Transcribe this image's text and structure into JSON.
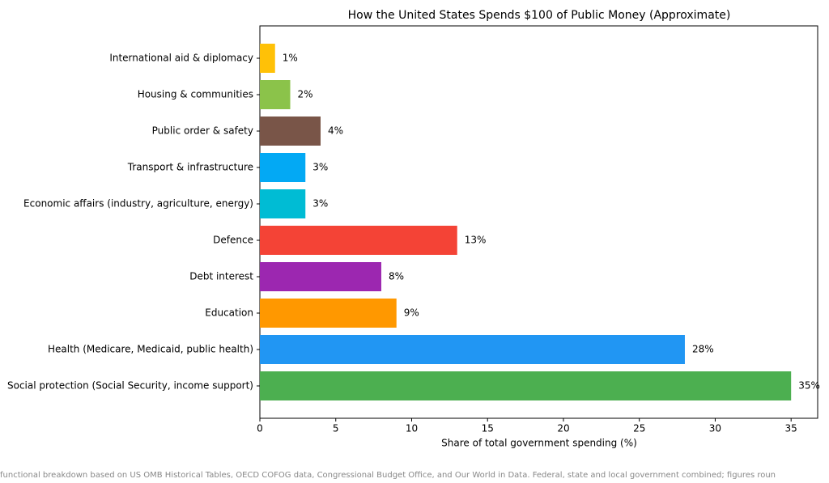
{
  "chart_data": {
    "type": "barh",
    "title": "How the United States Spends $100 of Public Money (Approximate)",
    "xlabel": "Share of total government spending (%)",
    "footnote": "functional breakdown based on US OMB Historical Tables, OECD COFOG data, Congressional Budget Office, and Our World in Data. Federal, state and local government combined; figures roun",
    "categories": [
      "Social protection (Social Security, income support)",
      "Health (Medicare, Medicaid, public health)",
      "Education",
      "Debt interest",
      "Defence",
      "Economic affairs (industry, agriculture, energy)",
      "Transport & infrastructure",
      "Public order & safety",
      "Housing & communities",
      "International aid & diplomacy"
    ],
    "values": [
      35,
      28,
      9,
      8,
      13,
      3,
      3,
      4,
      2,
      1
    ],
    "value_labels": [
      "35%",
      "28%",
      "9%",
      "8%",
      "13%",
      "3%",
      "3%",
      "4%",
      "2%",
      "1%"
    ],
    "colors": [
      "#4caf50",
      "#2196f3",
      "#ff9800",
      "#9c27b0",
      "#f44336",
      "#00bcd4",
      "#03a9f4",
      "#795548",
      "#8bc34a",
      "#ffc107"
    ],
    "xlim": [
      0,
      36.75
    ],
    "xticks": [
      0,
      5,
      10,
      15,
      20,
      25,
      30,
      35
    ]
  }
}
